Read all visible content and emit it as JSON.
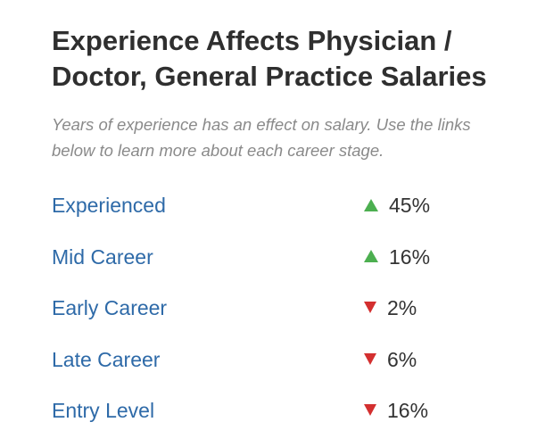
{
  "title_line1": "Experience Affects Physician /",
  "title_line2": "Doctor, General Practice Salaries",
  "subtitle_line1": "Years of experience has an effect on salary. Use the links",
  "subtitle_line2": "below to learn more about each career stage.",
  "colors": {
    "link": "#2e6aa8",
    "increase": "#4caf50",
    "decrease": "#d32f2f"
  },
  "career_stages": [
    {
      "label": "Experienced",
      "direction": "up",
      "icon": "up-triangle-icon",
      "change": "45%"
    },
    {
      "label": "Mid Career",
      "direction": "up",
      "icon": "up-triangle-icon",
      "change": "16%"
    },
    {
      "label": "Early Career",
      "direction": "down",
      "icon": "down-triangle-icon",
      "change": "2%"
    },
    {
      "label": "Late Career",
      "direction": "down",
      "icon": "down-triangle-icon",
      "change": "6%"
    },
    {
      "label": "Entry Level",
      "direction": "down",
      "icon": "down-triangle-icon",
      "change": "16%"
    }
  ]
}
